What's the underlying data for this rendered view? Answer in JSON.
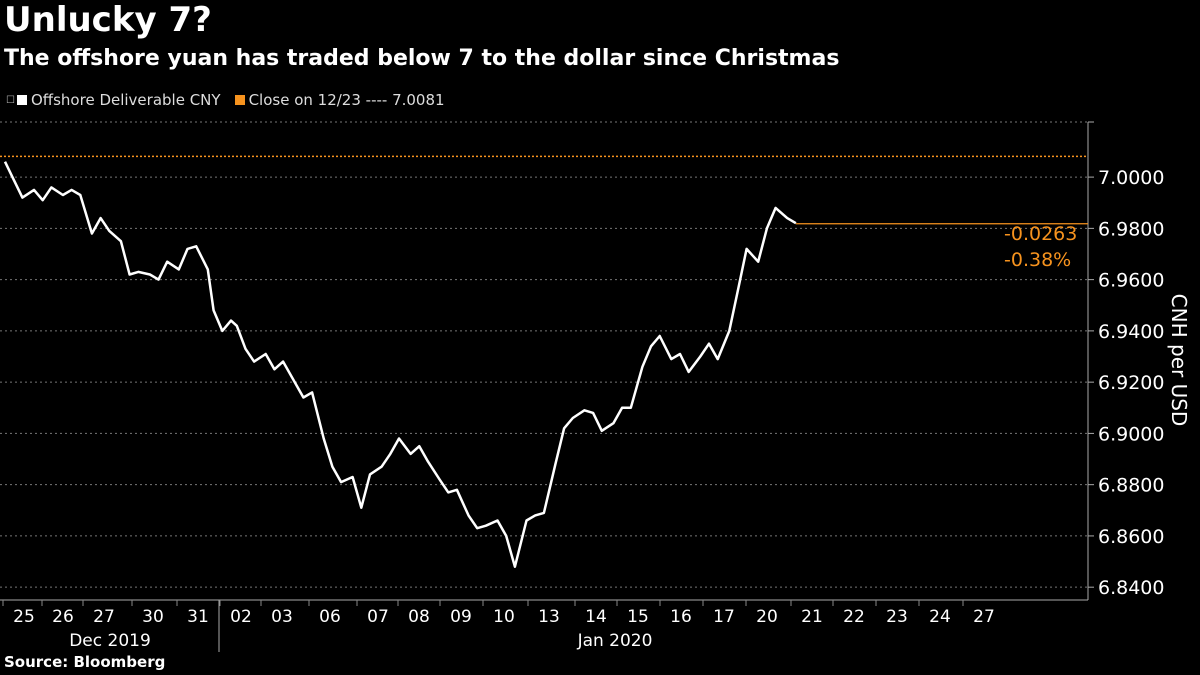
{
  "title": "Unlucky 7?",
  "subtitle": "The offshore yuan has traded below 7 to the dollar since Christmas",
  "legend": {
    "series_label": "Offshore Deliverable CNY",
    "close_label": "Close on 12/23 ---- 7.0081",
    "series_color": "#ffffff",
    "close_color": "#f7931e"
  },
  "source": "Source: Bloomberg",
  "chart_data": {
    "type": "line",
    "title": "Unlucky 7?",
    "ylabel": "CNH per USD",
    "ylim": [
      6.835,
      7.0215
    ],
    "yticks": [
      "7.0000",
      "6.9800",
      "6.9600",
      "6.9400",
      "6.9200",
      "6.9000",
      "6.8800",
      "6.8600",
      "6.8400"
    ],
    "ytick_values": [
      7.0,
      6.98,
      6.96,
      6.94,
      6.92,
      6.9,
      6.88,
      6.86,
      6.84
    ],
    "x_day_labels": [
      "25",
      "26",
      "27",
      "30",
      "31",
      "02",
      "03",
      "06",
      "07",
      "08",
      "09",
      "10",
      "13",
      "14",
      "15",
      "16",
      "17",
      "20",
      "21",
      "22",
      "23",
      "24",
      "27"
    ],
    "x_month_labels": [
      "Dec 2019",
      "Jan 2020"
    ],
    "reference_line": {
      "label": "Close on 12/23",
      "value": 7.0081
    },
    "last_value": 6.9818,
    "change_abs": "-0.0263",
    "change_pct": "-0.38%",
    "series": [
      {
        "name": "Offshore Deliverable CNY",
        "x": [
          0,
          0.3,
          0.6,
          1,
          1.3,
          1.6,
          2,
          2.3,
          2.6,
          3,
          3.3,
          3.6,
          4,
          4.3,
          4.6,
          5,
          5.3,
          5.6,
          6,
          6.3,
          6.6,
          7,
          7.2,
          7.5,
          7.8,
          8,
          8.3,
          8.6,
          9,
          9.3,
          9.6,
          10,
          10.3,
          10.6,
          11,
          11.3,
          11.6,
          12,
          12.3,
          12.6,
          13,
          13.3,
          13.6,
          14,
          14.3,
          14.6,
          15,
          15.3,
          15.6,
          16,
          16.3,
          16.6,
          17,
          17.3,
          17.6,
          18,
          18.3,
          18.6,
          19,
          19.3,
          19.6,
          20,
          20.3,
          20.6,
          21,
          21.3,
          21.6,
          22,
          22.3,
          22.6,
          23,
          23.3,
          23.6,
          24,
          24.3,
          24.6,
          25,
          25.3,
          25.6,
          26,
          26.3,
          26.6,
          27,
          27.3,
          27.6,
          28,
          28.3,
          28.6,
          29,
          29.3,
          29.6,
          30,
          30.3,
          30.6,
          31,
          31.3,
          31.6,
          32,
          32.3,
          32.6,
          33,
          33.3,
          33.6,
          34
        ],
        "values": [
          7.006,
          6.999,
          6.992,
          6.995,
          6.991,
          6.996,
          6.993,
          6.995,
          6.993,
          6.978,
          6.984,
          6.979,
          6.975,
          6.962,
          6.963,
          6.962,
          6.96,
          6.967,
          6.964,
          6.972,
          6.973,
          6.964,
          6.948,
          6.94,
          6.944,
          6.942,
          6.933,
          6.928,
          6.931,
          6.925,
          6.928,
          6.92,
          6.914,
          6.916,
          6.898,
          6.887,
          6.881,
          6.883,
          6.871,
          6.884,
          6.887,
          6.892,
          6.898,
          6.892,
          6.895,
          6.889,
          6.882,
          6.877,
          6.878,
          6.868,
          6.863,
          6.864,
          6.866,
          6.86,
          6.848,
          6.866,
          6.868,
          6.869,
          6.888,
          6.902,
          6.906,
          6.909,
          6.908,
          6.901,
          6.904,
          6.91,
          6.91,
          6.926,
          6.934,
          6.938,
          6.929,
          6.931,
          6.924,
          6.93,
          6.935,
          6.929,
          6.94,
          6.956,
          6.972,
          6.967,
          6.98,
          6.988,
          6.984,
          6.982,
          6.982,
          6.982,
          6.982,
          6.982,
          6.982,
          6.982,
          6.982,
          6.982,
          6.982,
          6.982,
          6.982,
          6.982,
          6.982,
          6.982,
          6.982,
          6.982,
          6.982,
          6.982,
          6.982,
          6.982
        ]
      }
    ]
  }
}
